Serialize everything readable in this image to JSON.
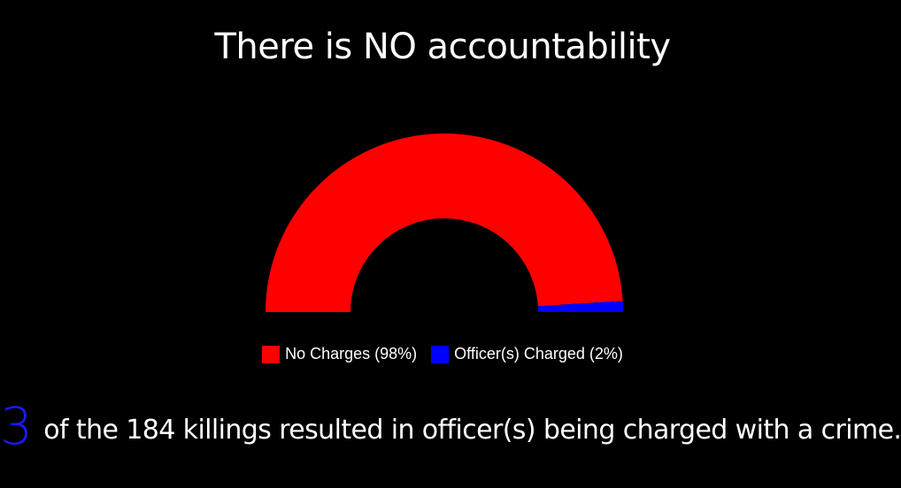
{
  "title": "There is NO accountability",
  "colors": {
    "background": "#000000",
    "no_charges": "#ff0000",
    "charged": "#0000ff",
    "highlight": "#1a1aff",
    "text": "#ffffff"
  },
  "chart_data": {
    "type": "pie",
    "variant": "half-donut",
    "title": "There is NO accountability",
    "slices": [
      {
        "label": "No Charges (98%)",
        "value": 98,
        "color": "#ff0000"
      },
      {
        "label": "Officer(s) Charged (2%)",
        "value": 2,
        "color": "#0000ff"
      }
    ],
    "legend_position": "bottom"
  },
  "legend": [
    {
      "label": "No Charges (98%)",
      "color": "#ff0000"
    },
    {
      "label": "Officer(s) Charged (2%)",
      "color": "#0000ff"
    }
  ],
  "footer": {
    "number": "3",
    "text": "of the 184 killings resulted in officer(s) being charged with a crime."
  }
}
